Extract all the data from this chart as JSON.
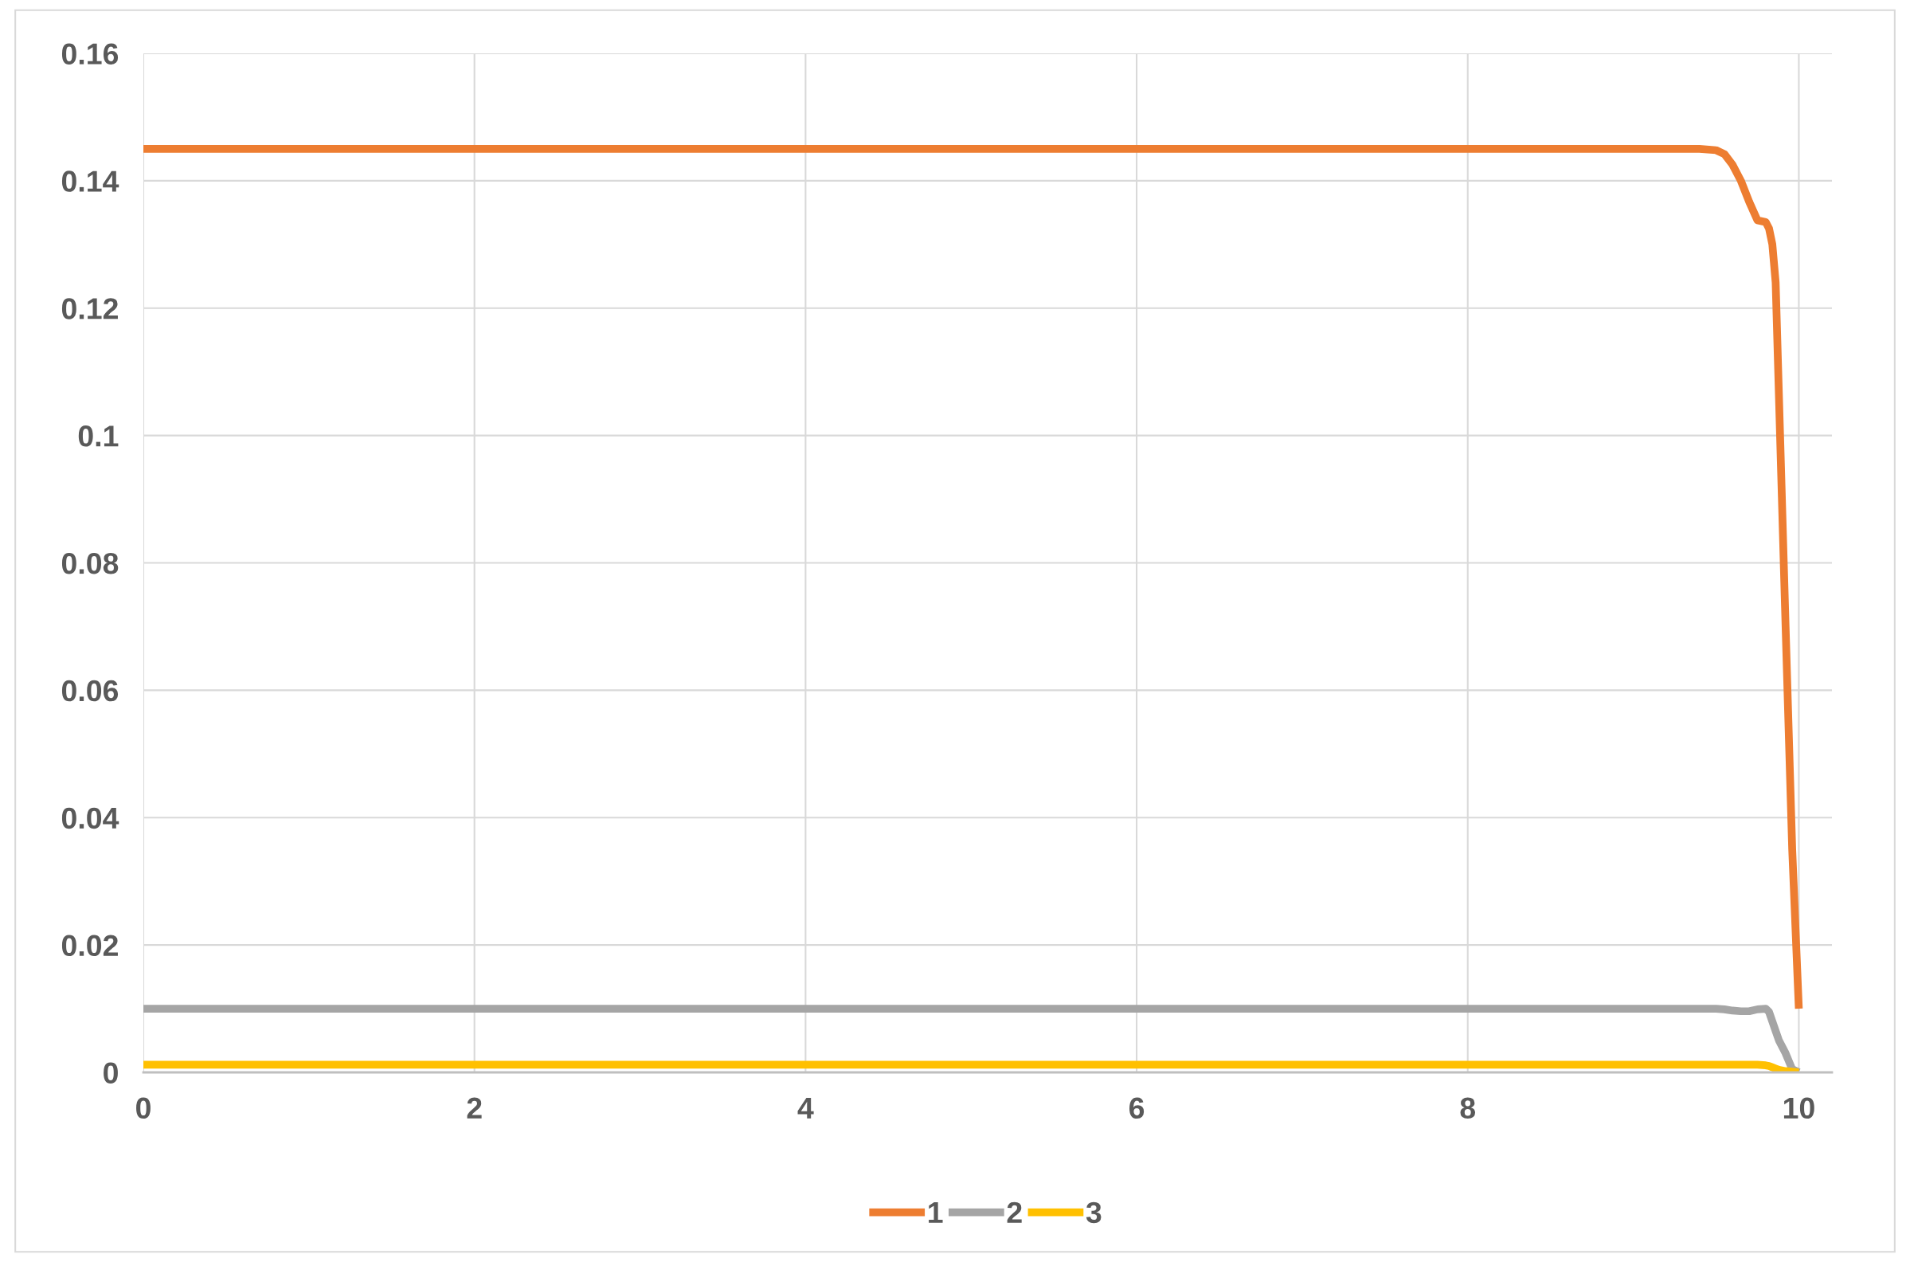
{
  "chart_data": {
    "type": "line",
    "x": [
      0,
      9.4,
      9.5,
      9.55,
      9.6,
      9.65,
      9.7,
      9.75,
      9.8,
      9.82,
      9.84,
      9.86,
      9.88,
      9.92,
      9.96,
      10
    ],
    "series": [
      {
        "name": "1",
        "color": "#ed7d31",
        "values": [
          0.145,
          0.145,
          0.1448,
          0.1442,
          0.1425,
          0.14,
          0.1367,
          0.1338,
          0.1335,
          0.1325,
          0.13,
          0.124,
          0.106,
          0.07,
          0.035,
          0.01
        ]
      },
      {
        "name": "2",
        "color": "#a5a5a5",
        "values": [
          0.01,
          0.01,
          0.01,
          0.0099,
          0.0097,
          0.0096,
          0.0096,
          0.0099,
          0.01,
          0.0095,
          0.008,
          0.0065,
          0.005,
          0.003,
          0.0005,
          0
        ]
      },
      {
        "name": "3",
        "color": "#ffc000",
        "values": [
          0.0012,
          0.0012,
          0.0012,
          0.0012,
          0.0012,
          0.0012,
          0.0012,
          0.0012,
          0.0011,
          0.001,
          0.0008,
          0.0006,
          0.0004,
          0.0002,
          0.0001,
          0
        ]
      }
    ],
    "xlim": [
      0,
      10.2
    ],
    "xticks": [
      0,
      2,
      4,
      6,
      8,
      10
    ],
    "ylim": [
      0,
      0.16
    ],
    "yticks": [
      0,
      0.02,
      0.04,
      0.06,
      0.08,
      0.1,
      0.12,
      0.14,
      0.16
    ],
    "grid": true,
    "legend": "bottom",
    "marker": "none",
    "line_style": "solid"
  }
}
